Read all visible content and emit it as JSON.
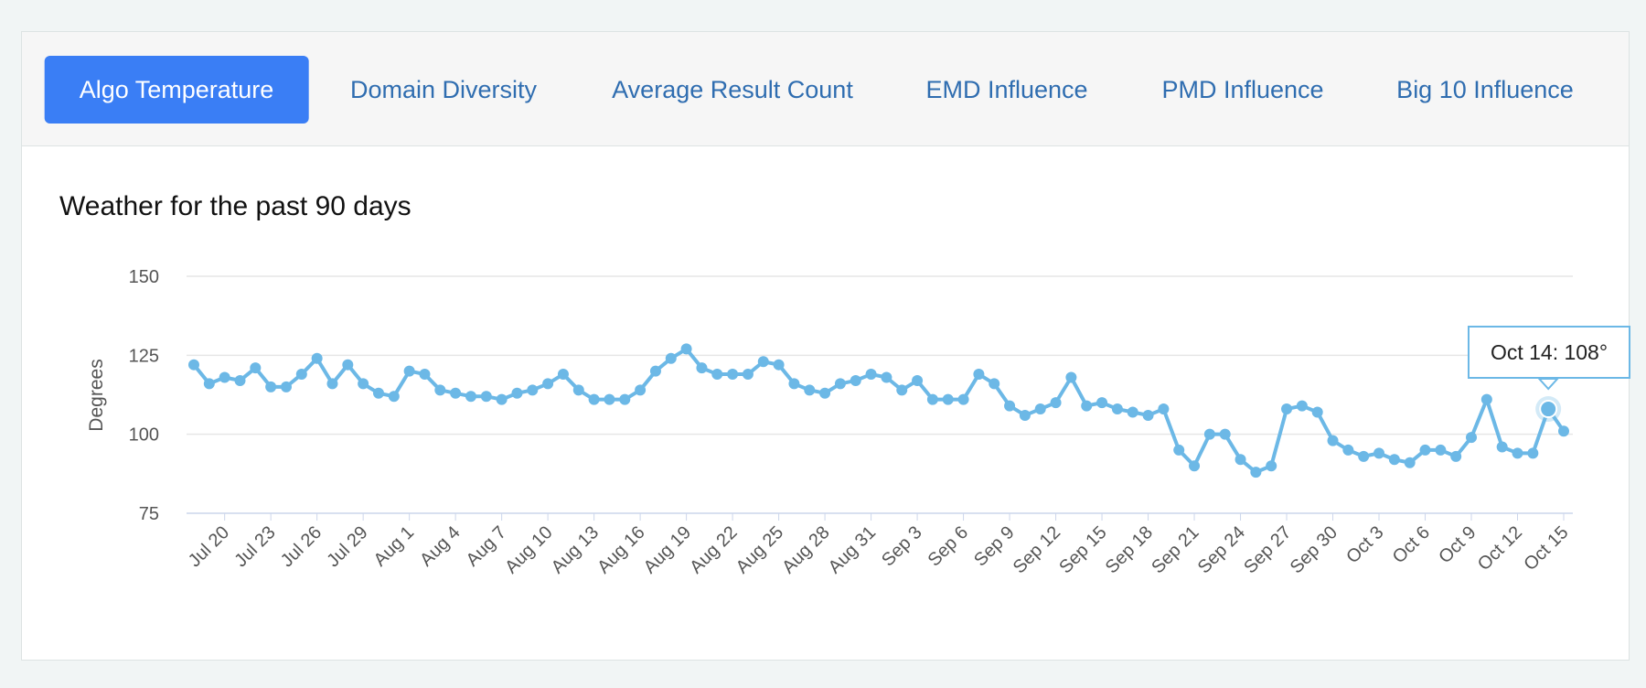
{
  "tabs": [
    "Algo Temperature",
    "Domain Diversity",
    "Average Result Count",
    "EMD Influence",
    "PMD Influence",
    "Big 10 Influence"
  ],
  "chart_data": {
    "type": "line",
    "title": "Weather for the past 90 days",
    "y_label": "Degrees",
    "categories": [
      null,
      null,
      "Jul 20",
      null,
      null,
      "Jul 23",
      null,
      null,
      "Jul 26",
      null,
      null,
      "Jul 29",
      null,
      null,
      "Aug 1",
      null,
      null,
      "Aug 4",
      null,
      null,
      "Aug 7",
      null,
      null,
      "Aug 10",
      null,
      null,
      "Aug 13",
      null,
      null,
      "Aug 16",
      null,
      null,
      "Aug 19",
      null,
      null,
      "Aug 22",
      null,
      null,
      "Aug 25",
      null,
      null,
      "Aug 28",
      null,
      null,
      "Aug 31",
      null,
      null,
      "Sep 3",
      null,
      null,
      "Sep 6",
      null,
      null,
      "Sep 9",
      null,
      null,
      "Sep 12",
      null,
      null,
      "Sep 15",
      null,
      null,
      "Sep 18",
      null,
      null,
      "Sep 21",
      null,
      null,
      "Sep 24",
      null,
      null,
      "Sep 27",
      null,
      null,
      "Sep 30",
      null,
      null,
      "Oct 3",
      null,
      null,
      "Oct 6",
      null,
      null,
      "Oct 9",
      null,
      null,
      "Oct 12",
      null,
      null,
      "Oct 15"
    ],
    "series": [
      {
        "name": "Temperature",
        "color": "#6cb8e6",
        "values": [
          122,
          116,
          118,
          117,
          121,
          115,
          115,
          119,
          124,
          116,
          122,
          116,
          113,
          112,
          120,
          119,
          114,
          113,
          112,
          112,
          111,
          113,
          114,
          116,
          119,
          114,
          111,
          111,
          111,
          114,
          120,
          124,
          127,
          121,
          119,
          119,
          119,
          123,
          122,
          116,
          114,
          113,
          116,
          117,
          119,
          118,
          114,
          117,
          111,
          111,
          111,
          119,
          116,
          109,
          106,
          108,
          110,
          118,
          109,
          110,
          108,
          107,
          106,
          108,
          95,
          90,
          100,
          100,
          92,
          88,
          90,
          108,
          109,
          107,
          98,
          95,
          93,
          94,
          92,
          91,
          95,
          95,
          93,
          99,
          111,
          96,
          94,
          94,
          108,
          101
        ]
      }
    ],
    "ylim": [
      75,
      150
    ],
    "yticks": [
      75,
      100,
      125,
      150
    ],
    "grid": true,
    "tooltip": "Oct 14: 108°"
  }
}
